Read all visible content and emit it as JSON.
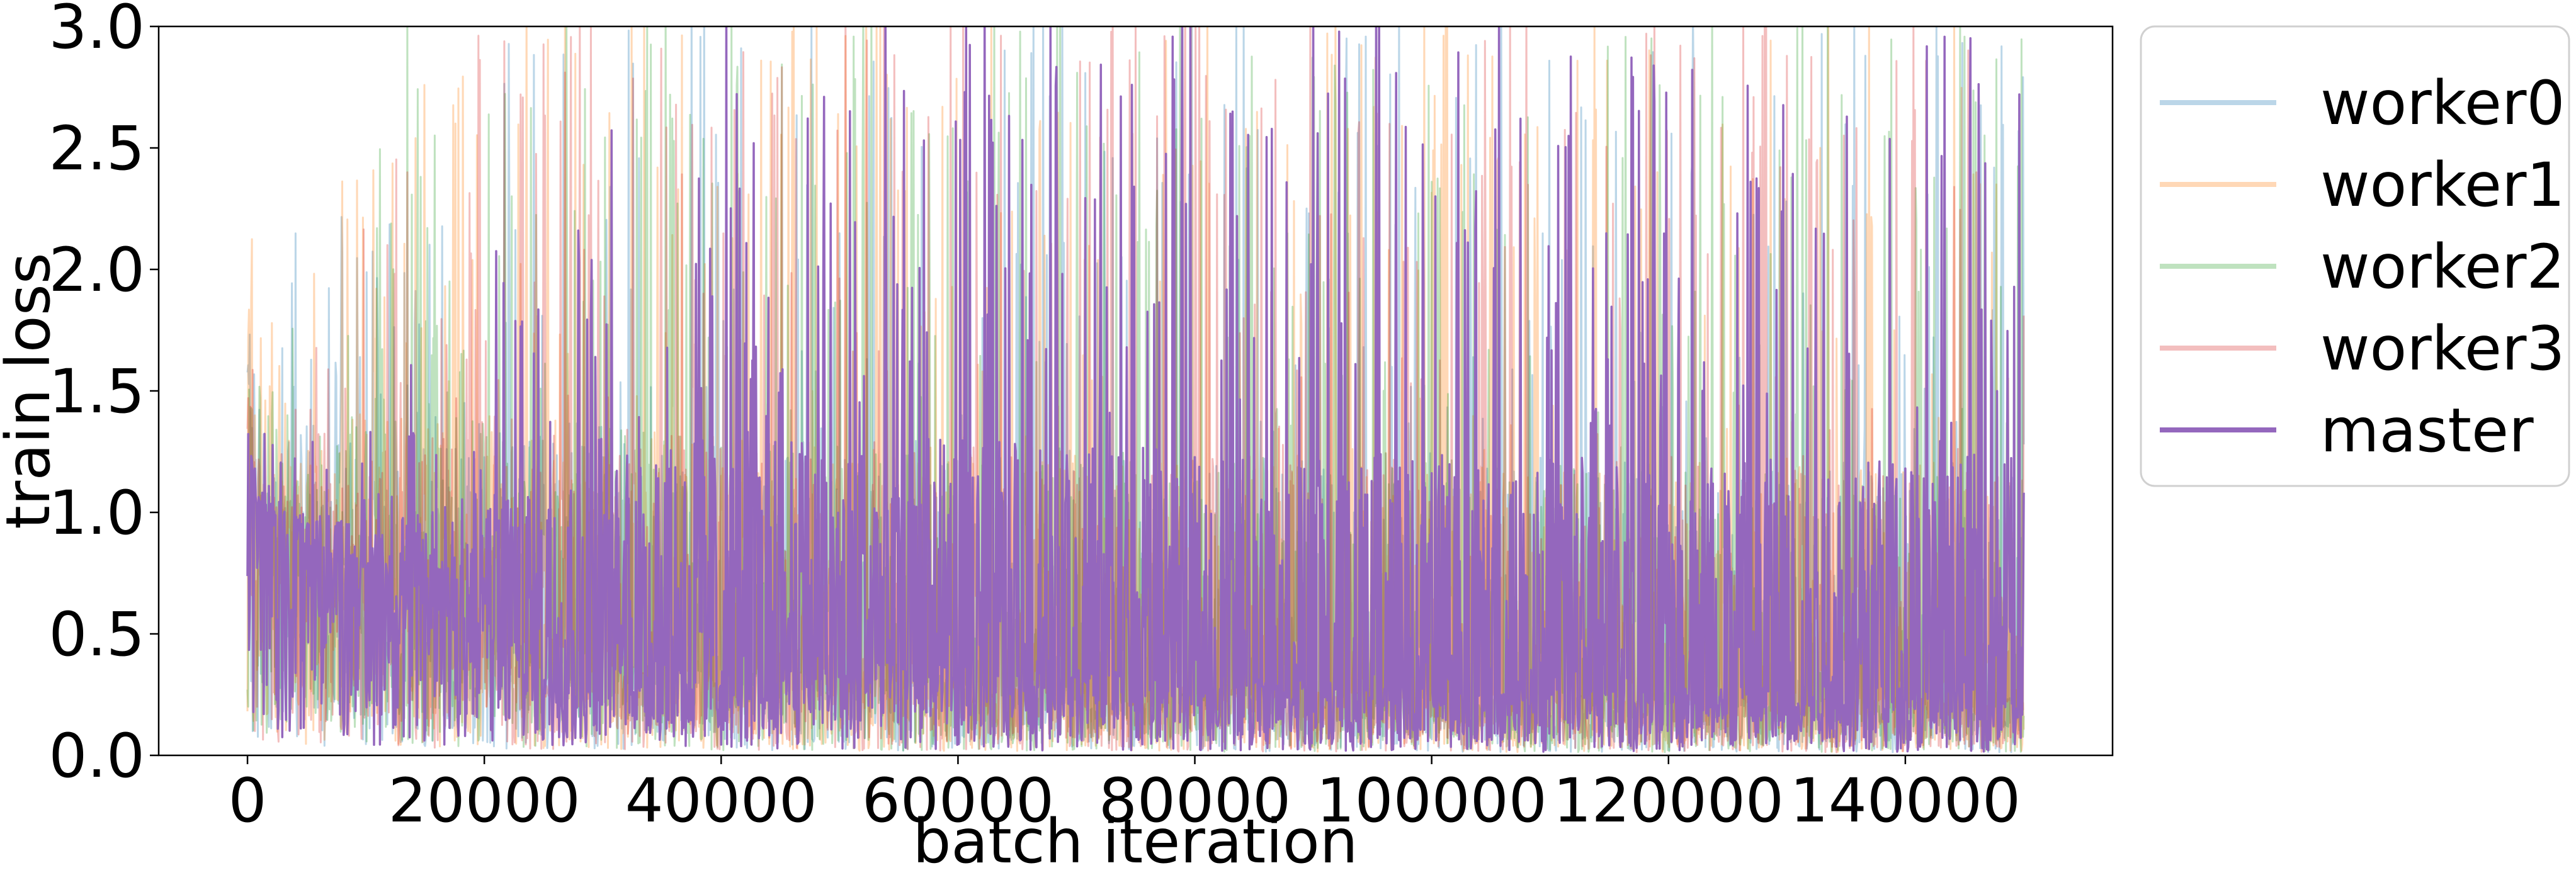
{
  "chart_data": {
    "type": "line",
    "title": "",
    "xlabel": "batch iteration",
    "ylabel": "train loss",
    "xlim": [
      -7500,
      157500
    ],
    "ylim": [
      0.0,
      3.0
    ],
    "xticks": [
      0,
      20000,
      40000,
      60000,
      80000,
      100000,
      120000,
      140000
    ],
    "xtick_labels": [
      "0",
      "20000",
      "40000",
      "60000",
      "80000",
      "100000",
      "120000",
      "140000"
    ],
    "yticks": [
      0.0,
      0.5,
      1.0,
      1.5,
      2.0,
      2.5,
      3.0
    ],
    "ytick_labels": [
      "0.0",
      "0.5",
      "1.0",
      "1.5",
      "2.0",
      "2.5",
      "3.0"
    ],
    "grid": false,
    "legend_position": "outside-right-top",
    "series": [
      {
        "name": "worker0",
        "color": "#1f77b4",
        "opacity": 0.3,
        "x": [
          0,
          1000,
          5000,
          10000,
          20000,
          40000,
          60000,
          80000,
          100000,
          120000,
          140000,
          150000
        ],
        "y": [
          1.55,
          0.95,
          0.8,
          0.75,
          0.55,
          0.4,
          0.35,
          0.3,
          0.3,
          0.25,
          0.25,
          0.25
        ],
        "y_max": [
          1.8,
          1.5,
          2.5,
          2.0,
          3.0,
          3.0,
          3.0,
          3.0,
          3.0,
          3.0,
          3.0,
          3.0
        ]
      },
      {
        "name": "worker1",
        "color": "#ff7f0e",
        "opacity": 0.3,
        "x": [
          0,
          1000,
          5000,
          10000,
          20000,
          40000,
          60000,
          80000,
          100000,
          120000,
          140000,
          150000
        ],
        "y": [
          1.6,
          1.0,
          0.85,
          0.75,
          0.55,
          0.4,
          0.35,
          0.3,
          0.3,
          0.25,
          0.25,
          0.25
        ],
        "y_max": [
          2.4,
          1.7,
          2.0,
          2.7,
          3.0,
          3.0,
          3.0,
          3.0,
          3.0,
          3.0,
          3.0,
          3.0
        ]
      },
      {
        "name": "worker2",
        "color": "#2ca02c",
        "opacity": 0.3,
        "x": [
          0,
          1000,
          5000,
          10000,
          20000,
          40000,
          60000,
          80000,
          100000,
          120000,
          140000,
          150000
        ],
        "y": [
          1.5,
          0.95,
          0.8,
          0.7,
          0.55,
          0.4,
          0.35,
          0.3,
          0.3,
          0.25,
          0.25,
          0.25
        ],
        "y_max": [
          1.8,
          1.6,
          1.8,
          3.0,
          3.0,
          3.0,
          3.0,
          3.0,
          3.0,
          3.0,
          3.0,
          3.0
        ]
      },
      {
        "name": "worker3",
        "color": "#d62728",
        "opacity": 0.3,
        "x": [
          0,
          1000,
          5000,
          10000,
          20000,
          40000,
          60000,
          80000,
          100000,
          120000,
          140000,
          150000
        ],
        "y": [
          1.5,
          0.95,
          0.8,
          0.7,
          0.55,
          0.4,
          0.35,
          0.3,
          0.3,
          0.25,
          0.25,
          0.25
        ],
        "y_max": [
          1.7,
          1.5,
          1.7,
          2.2,
          3.0,
          3.0,
          3.0,
          3.0,
          3.0,
          3.0,
          3.0,
          3.0
        ]
      },
      {
        "name": "master",
        "color": "#9467bd",
        "opacity": 1.0,
        "x": [
          0,
          1000,
          5000,
          10000,
          20000,
          40000,
          60000,
          80000,
          100000,
          120000,
          140000,
          150000
        ],
        "y": [
          1.3,
          0.95,
          0.85,
          0.75,
          0.6,
          0.45,
          0.4,
          0.35,
          0.3,
          0.3,
          0.3,
          0.3
        ],
        "y_max": [
          1.5,
          1.4,
          1.3,
          1.3,
          2.0,
          3.0,
          3.0,
          3.0,
          3.0,
          3.0,
          3.0,
          3.0
        ]
      }
    ]
  }
}
